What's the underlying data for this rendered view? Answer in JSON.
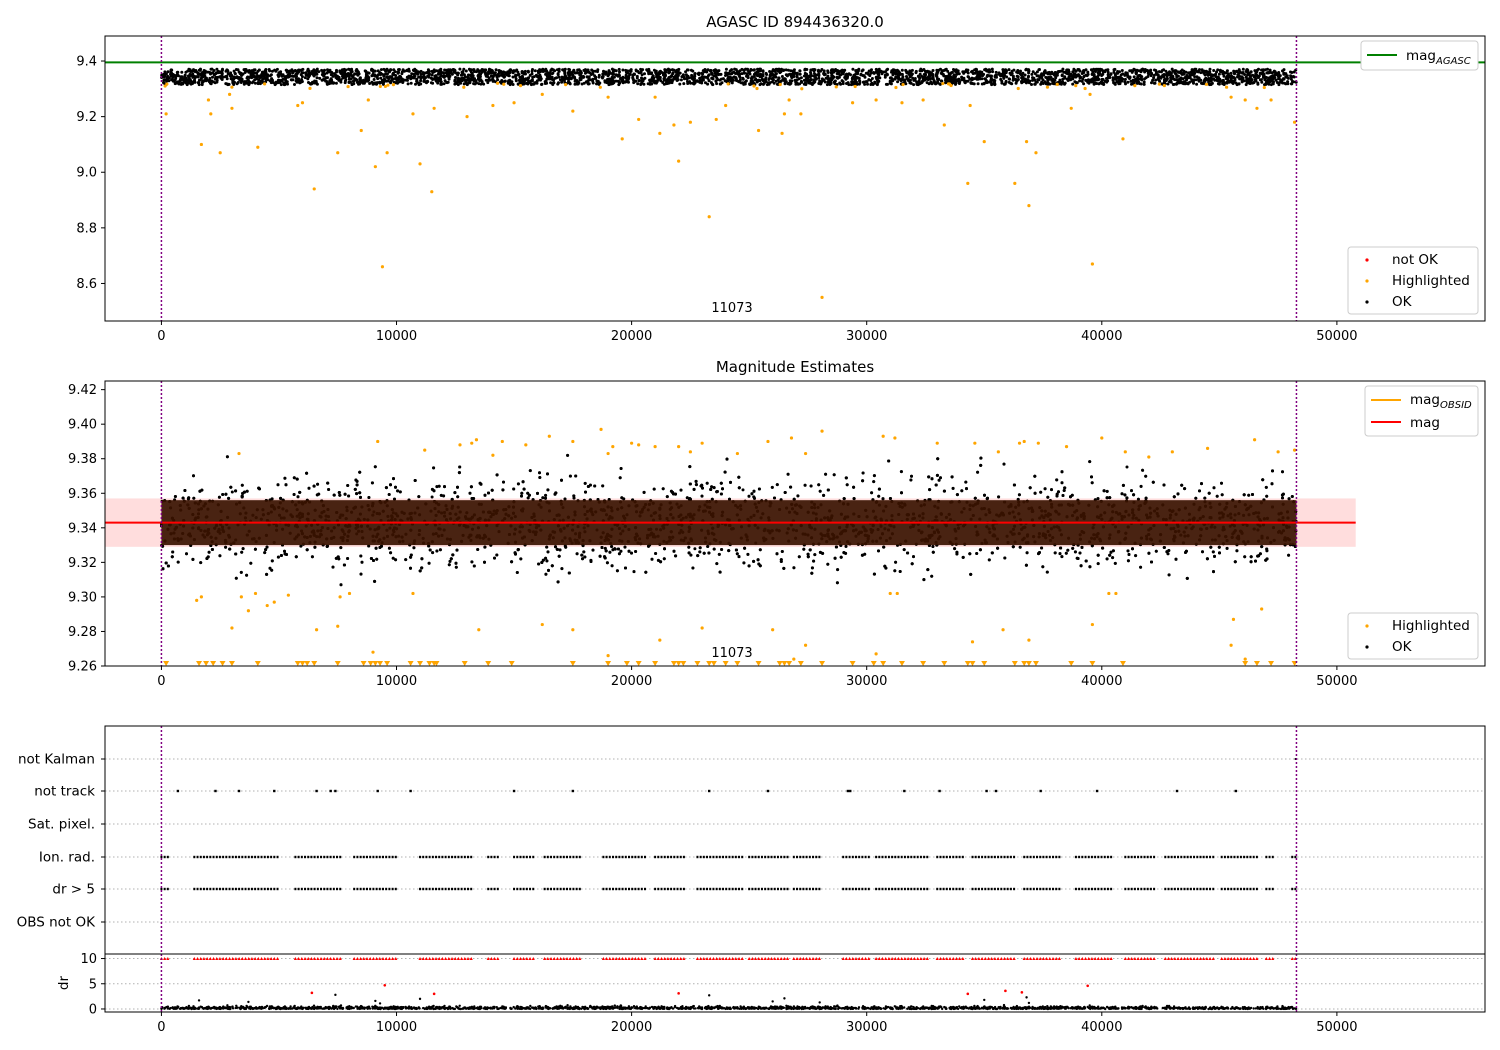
{
  "chart_data": [
    {
      "type": "scatter",
      "title": "AGASC ID 894436320.0",
      "xlabel": "",
      "ylabel": "",
      "xlim": [
        -2400,
        56300
      ],
      "ylim": [
        8.465,
        9.49
      ],
      "xticks": [
        0,
        10000,
        20000,
        30000,
        40000,
        50000
      ],
      "xtick_labels": [
        "0",
        "10000",
        "20000",
        "30000",
        "40000",
        "50000"
      ],
      "yticks": [
        8.6,
        8.8,
        9.0,
        9.2,
        9.4
      ],
      "ytick_labels": [
        "8.6",
        "8.8",
        "9.0",
        "9.2",
        "9.4"
      ],
      "vlines": [
        0,
        48280
      ],
      "obsid_label": "11073",
      "reference_line": {
        "name_main": "mag",
        "name_sub": "AGASC",
        "value": 9.395,
        "color": "#008000"
      },
      "ok_band": {
        "x_range": [
          0,
          48280
        ],
        "center": 9.343,
        "spread": 0.028,
        "color": "#000000"
      },
      "highlighted_points": [
        [
          200,
          9.21
        ],
        [
          1700,
          9.1
        ],
        [
          2000,
          9.26
        ],
        [
          2100,
          9.21
        ],
        [
          2500,
          9.07
        ],
        [
          2900,
          9.28
        ],
        [
          3000,
          9.23
        ],
        [
          4100,
          9.09
        ],
        [
          5800,
          9.24
        ],
        [
          6000,
          9.25
        ],
        [
          6500,
          8.94
        ],
        [
          7500,
          9.07
        ],
        [
          8500,
          9.15
        ],
        [
          8800,
          9.26
        ],
        [
          9100,
          9.02
        ],
        [
          9400,
          8.66
        ],
        [
          9600,
          9.07
        ],
        [
          10700,
          9.21
        ],
        [
          11000,
          9.03
        ],
        [
          11500,
          8.93
        ],
        [
          11600,
          9.23
        ],
        [
          13000,
          9.2
        ],
        [
          14100,
          9.24
        ],
        [
          15000,
          9.25
        ],
        [
          16200,
          9.28
        ],
        [
          17500,
          9.22
        ],
        [
          19000,
          9.27
        ],
        [
          19600,
          9.12
        ],
        [
          20300,
          9.19
        ],
        [
          21000,
          9.27
        ],
        [
          21200,
          9.14
        ],
        [
          21800,
          9.17
        ],
        [
          22000,
          9.04
        ],
        [
          22500,
          9.18
        ],
        [
          23300,
          8.84
        ],
        [
          23600,
          9.19
        ],
        [
          24000,
          9.24
        ],
        [
          25400,
          9.15
        ],
        [
          26400,
          9.14
        ],
        [
          26500,
          9.21
        ],
        [
          26700,
          9.26
        ],
        [
          27200,
          9.21
        ],
        [
          28100,
          8.55
        ],
        [
          29400,
          9.25
        ],
        [
          30400,
          9.26
        ],
        [
          31500,
          9.25
        ],
        [
          32400,
          9.26
        ],
        [
          33300,
          9.17
        ],
        [
          34300,
          8.96
        ],
        [
          34400,
          9.24
        ],
        [
          35000,
          9.11
        ],
        [
          36300,
          8.96
        ],
        [
          36800,
          9.11
        ],
        [
          36900,
          8.88
        ],
        [
          37200,
          9.07
        ],
        [
          38700,
          9.23
        ],
        [
          39500,
          9.28
        ],
        [
          39600,
          8.67
        ],
        [
          40900,
          9.12
        ],
        [
          45500,
          9.27
        ],
        [
          46100,
          9.26
        ],
        [
          46600,
          9.23
        ],
        [
          47200,
          9.26
        ],
        [
          48200,
          9.18
        ]
      ],
      "not_ok_points": [],
      "legend": [
        {
          "label": "not OK",
          "color": "#ff0000"
        },
        {
          "label": "Highlighted",
          "color": "#ffa500"
        },
        {
          "label": "OK",
          "color": "#000000"
        }
      ]
    },
    {
      "type": "scatter",
      "title": "Magnitude Estimates",
      "xlabel": "",
      "ylabel": "",
      "xlim": [
        -2400,
        56300
      ],
      "ylim": [
        9.26,
        9.425
      ],
      "xticks": [
        0,
        10000,
        20000,
        30000,
        40000,
        50000
      ],
      "xtick_labels": [
        "0",
        "10000",
        "20000",
        "30000",
        "40000",
        "50000"
      ],
      "yticks": [
        9.26,
        9.28,
        9.3,
        9.32,
        9.34,
        9.36,
        9.38,
        9.4,
        9.42
      ],
      "ytick_labels": [
        "9.26",
        "9.28",
        "9.30",
        "9.32",
        "9.34",
        "9.36",
        "9.38",
        "9.40",
        "9.42"
      ],
      "vlines": [
        0,
        48280
      ],
      "obsid_label": "11073",
      "mag_line": {
        "value": 9.343,
        "x_range": [
          -2400,
          50800
        ],
        "color": "#ff0000"
      },
      "mag_band": {
        "low": 9.329,
        "high": 9.357,
        "x_range": [
          -2400,
          50800
        ],
        "color": "#ffdddd"
      },
      "obsid_band": {
        "low": 9.33,
        "high": 9.356,
        "x_range": [
          0,
          48280
        ],
        "color": "#3a1200"
      },
      "ok_band": {
        "x_range": [
          0,
          48280
        ],
        "center": 9.343,
        "spread": 0.032,
        "color": "#000000"
      },
      "highlighted_points": [
        [
          1700,
          9.3
        ],
        [
          1500,
          9.298
        ],
        [
          3000,
          9.282
        ],
        [
          3400,
          9.3
        ],
        [
          3700,
          9.292
        ],
        [
          4000,
          9.302
        ],
        [
          4500,
          9.295
        ],
        [
          4800,
          9.297
        ],
        [
          5400,
          9.301
        ],
        [
          6600,
          9.281
        ],
        [
          7500,
          9.283
        ],
        [
          7600,
          9.3
        ],
        [
          8000,
          9.302
        ],
        [
          9000,
          9.268
        ],
        [
          10700,
          9.302
        ],
        [
          13500,
          9.281
        ],
        [
          16200,
          9.284
        ],
        [
          17500,
          9.281
        ],
        [
          19000,
          9.266
        ],
        [
          21200,
          9.275
        ],
        [
          23000,
          9.282
        ],
        [
          26000,
          9.281
        ],
        [
          26900,
          9.264
        ],
        [
          27400,
          9.272
        ],
        [
          30400,
          9.267
        ],
        [
          31000,
          9.302
        ],
        [
          31300,
          9.302
        ],
        [
          34500,
          9.274
        ],
        [
          35800,
          9.281
        ],
        [
          36900,
          9.275
        ],
        [
          39600,
          9.284
        ],
        [
          40300,
          9.302
        ],
        [
          40600,
          9.302
        ],
        [
          45500,
          9.272
        ],
        [
          45600,
          9.287
        ],
        [
          46100,
          9.264
        ],
        [
          46800,
          9.293
        ],
        [
          3300,
          9.383
        ],
        [
          9200,
          9.39
        ],
        [
          12700,
          9.388
        ],
        [
          13200,
          9.389
        ],
        [
          13400,
          9.391
        ],
        [
          14500,
          9.39
        ],
        [
          15500,
          9.388
        ],
        [
          16500,
          9.393
        ],
        [
          17500,
          9.39
        ],
        [
          18700,
          9.397
        ],
        [
          19000,
          9.383
        ],
        [
          19200,
          9.387
        ],
        [
          20000,
          9.389
        ],
        [
          20300,
          9.388
        ],
        [
          21000,
          9.387
        ],
        [
          22000,
          9.387
        ],
        [
          23000,
          9.389
        ],
        [
          24500,
          9.383
        ],
        [
          25800,
          9.39
        ],
        [
          26800,
          9.392
        ],
        [
          28100,
          9.396
        ],
        [
          30700,
          9.393
        ],
        [
          31200,
          9.392
        ],
        [
          33000,
          9.389
        ],
        [
          34600,
          9.389
        ],
        [
          36500,
          9.389
        ],
        [
          36700,
          9.39
        ],
        [
          37300,
          9.389
        ],
        [
          38500,
          9.387
        ],
        [
          40000,
          9.392
        ],
        [
          41000,
          9.384
        ],
        [
          43000,
          9.384
        ],
        [
          46500,
          9.391
        ],
        [
          47500,
          9.384
        ],
        [
          48200,
          9.385
        ],
        [
          11200,
          9.385
        ],
        [
          14100,
          9.382
        ],
        [
          22500,
          9.384
        ],
        [
          27400,
          9.383
        ],
        [
          35600,
          9.384
        ],
        [
          42000,
          9.381
        ],
        [
          44500,
          9.386
        ]
      ],
      "clipped_markers_x": [
        200,
        1600,
        1900,
        2200,
        2600,
        3000,
        4100,
        5800,
        6000,
        6200,
        6500,
        7500,
        8600,
        8900,
        9100,
        9300,
        9600,
        10600,
        11000,
        11400,
        11600,
        11700,
        12900,
        13900,
        14900,
        17500,
        19000,
        19800,
        20300,
        21000,
        21800,
        22000,
        22200,
        22800,
        23300,
        23500,
        24000,
        24500,
        25400,
        26300,
        26500,
        26700,
        27200,
        28100,
        29400,
        30300,
        30700,
        31500,
        32400,
        33300,
        34300,
        34500,
        35000,
        36300,
        36700,
        36900,
        37200,
        38700,
        39600,
        40900,
        46100,
        46600,
        47200,
        48200
      ],
      "legend": [
        {
          "label": "Highlighted",
          "color": "#ffa500"
        },
        {
          "label": "OK",
          "color": "#000000"
        }
      ],
      "legend_lines": [
        {
          "main": "mag",
          "sub": "OBSID",
          "color": "#ffa500"
        },
        {
          "main": "mag",
          "sub": "",
          "color": "#ff0000"
        }
      ]
    },
    {
      "type": "scatter",
      "title": "",
      "xlabel": "",
      "ylabel": "",
      "xlim": [
        -2400,
        56300
      ],
      "categories": [
        "not Kalman",
        "not track",
        "Sat. pixel.",
        "Ion. rad.",
        "dr > 5",
        "OBS not OK"
      ],
      "vlines": [
        0,
        48280
      ],
      "flag_points": {
        "not Kalman": [],
        "not track": [
          700,
          2300,
          3300,
          4800,
          6600,
          7200,
          7400,
          9200,
          10600,
          15000,
          17500,
          23300,
          25800,
          29200,
          29300,
          31600,
          33100,
          35100,
          35500,
          37400,
          39800,
          43200,
          45700
        ],
        "Sat. pixel.": [],
        "Ion. rad.": [],
        "dr > 5": [],
        "OBS not OK": []
      },
      "flag_clusters": [
        [
          0,
          300
        ],
        [
          1400,
          5000
        ],
        [
          5700,
          7700
        ],
        [
          8200,
          10100
        ],
        [
          11000,
          13300
        ],
        [
          13900,
          14400
        ],
        [
          15000,
          15900
        ],
        [
          16300,
          17900
        ],
        [
          18800,
          20700
        ],
        [
          21000,
          22300
        ],
        [
          22800,
          24800
        ],
        [
          25000,
          26700
        ],
        [
          26900,
          28100
        ],
        [
          29000,
          30100
        ],
        [
          30400,
          32700
        ],
        [
          33000,
          34100
        ],
        [
          34500,
          36300
        ],
        [
          36700,
          38300
        ],
        [
          38900,
          40500
        ],
        [
          41000,
          42300
        ],
        [
          42700,
          44800
        ],
        [
          45100,
          46600
        ],
        [
          47000,
          47300
        ],
        [
          48100,
          48280
        ]
      ]
    },
    {
      "type": "scatter",
      "title": "",
      "xlabel": "",
      "ylabel": "dr",
      "xlim": [
        -2400,
        56300
      ],
      "ylim": [
        -0.6,
        10.9
      ],
      "xticks": [
        0,
        10000,
        20000,
        30000,
        40000,
        50000
      ],
      "xtick_labels": [
        "0",
        "10000",
        "20000",
        "30000",
        "40000",
        "50000"
      ],
      "yticks": [
        0,
        5,
        10
      ],
      "ytick_labels": [
        "0",
        "5",
        "10"
      ],
      "vlines": [
        0,
        48280
      ],
      "clipped_value": 10,
      "red_points": [
        [
          6400,
          3.2
        ],
        [
          9500,
          4.7
        ],
        [
          11600,
          3.0
        ],
        [
          22000,
          3.1
        ],
        [
          34300,
          3.0
        ],
        [
          35900,
          3.6
        ],
        [
          36600,
          3.3
        ],
        [
          39400,
          4.6
        ]
      ],
      "scatter_points": [
        [
          7400,
          2.8
        ],
        [
          9100,
          1.6
        ],
        [
          9300,
          1.1
        ],
        [
          11000,
          2.0
        ],
        [
          23300,
          2.7
        ],
        [
          26000,
          1.5
        ],
        [
          26500,
          2.1
        ],
        [
          36800,
          2.3
        ],
        [
          36900,
          1.2
        ],
        [
          28000,
          1.3
        ],
        [
          35000,
          1.8
        ],
        [
          3700,
          1.4
        ],
        [
          1600,
          1.7
        ]
      ]
    }
  ]
}
